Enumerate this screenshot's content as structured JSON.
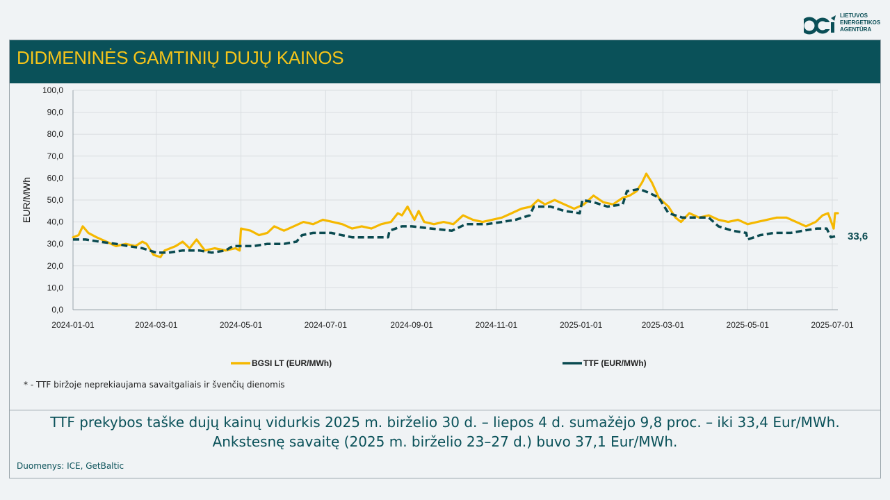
{
  "logo": {
    "line1": "LIETUVOS",
    "line2": "ENERGETIKOS",
    "line3": "AGENTŪRA"
  },
  "header": {
    "title": "DIDMENINĖS GAMTINIŲ DUJŲ KAINOS"
  },
  "note": "* - TTF biržoje neprekiaujama savaitgaliais ir švenčių dienomis",
  "summary": {
    "line1": "TTF prekybos taške dujų kainų vidurkis 2025 m. birželio 30 d. – liepos 4 d. sumažėjo 9,8 proc. – iki 33,4 Eur/MWh.",
    "line2": "Ankstesnę savaitę (2025 m. birželio 23–27 d.) buvo 37,1 Eur/MWh."
  },
  "source": "Duomenys: ICE, GetBaltic",
  "colors": {
    "bgsi": "#f5b800",
    "ttf": "#0a4a50",
    "header": "#0a5159",
    "title": "#f5c41a"
  },
  "chart_data": {
    "type": "line",
    "xlabel": "",
    "ylabel": "EUR/MWh",
    "ylim": [
      0,
      100
    ],
    "yticks": [
      "0,0",
      "10,0",
      "20,0",
      "30,0",
      "40,0",
      "50,0",
      "60,0",
      "70,0",
      "80,0",
      "90,0",
      "100,0"
    ],
    "xticks": [
      "2024-01-01",
      "2024-03-01",
      "2024-05-01",
      "2024-07-01",
      "2024-09-01",
      "2024-11-01",
      "2025-01-01",
      "2025-03-01",
      "2025-05-01",
      "2025-07-01"
    ],
    "xlim": [
      "2024-01-01",
      "2025-07-05"
    ],
    "end_label": "33,6",
    "legend_position": "bottom",
    "series": [
      {
        "name": "BGSI LT (EUR/MWh)",
        "style": "solid",
        "points": [
          [
            "2024-01-01",
            33
          ],
          [
            "2024-01-05",
            34
          ],
          [
            "2024-01-08",
            38
          ],
          [
            "2024-01-12",
            35
          ],
          [
            "2024-01-18",
            33
          ],
          [
            "2024-01-25",
            31
          ],
          [
            "2024-02-01",
            29
          ],
          [
            "2024-02-08",
            30
          ],
          [
            "2024-02-15",
            29
          ],
          [
            "2024-02-20",
            31
          ],
          [
            "2024-02-23",
            30
          ],
          [
            "2024-02-28",
            25
          ],
          [
            "2024-03-04",
            24
          ],
          [
            "2024-03-07",
            27
          ],
          [
            "2024-03-15",
            29
          ],
          [
            "2024-03-20",
            31
          ],
          [
            "2024-03-25",
            28
          ],
          [
            "2024-03-30",
            32
          ],
          [
            "2024-04-05",
            27
          ],
          [
            "2024-04-12",
            28
          ],
          [
            "2024-04-20",
            27
          ],
          [
            "2024-04-27",
            28
          ],
          [
            "2024-04-30",
            27
          ],
          [
            "2024-05-01",
            37
          ],
          [
            "2024-05-08",
            36
          ],
          [
            "2024-05-14",
            34
          ],
          [
            "2024-05-20",
            35
          ],
          [
            "2024-05-25",
            38
          ],
          [
            "2024-06-01",
            36
          ],
          [
            "2024-06-08",
            38
          ],
          [
            "2024-06-15",
            40
          ],
          [
            "2024-06-22",
            39
          ],
          [
            "2024-06-29",
            41
          ],
          [
            "2024-07-06",
            40
          ],
          [
            "2024-07-13",
            39
          ],
          [
            "2024-07-20",
            37
          ],
          [
            "2024-07-27",
            38
          ],
          [
            "2024-08-03",
            37
          ],
          [
            "2024-08-10",
            39
          ],
          [
            "2024-08-17",
            40
          ],
          [
            "2024-08-22",
            44
          ],
          [
            "2024-08-25",
            43
          ],
          [
            "2024-08-29",
            47
          ],
          [
            "2024-09-03",
            41
          ],
          [
            "2024-09-06",
            45
          ],
          [
            "2024-09-10",
            40
          ],
          [
            "2024-09-17",
            39
          ],
          [
            "2024-09-24",
            40
          ],
          [
            "2024-10-01",
            39
          ],
          [
            "2024-10-08",
            43
          ],
          [
            "2024-10-15",
            41
          ],
          [
            "2024-10-22",
            40
          ],
          [
            "2024-10-29",
            41
          ],
          [
            "2024-11-05",
            42
          ],
          [
            "2024-11-12",
            44
          ],
          [
            "2024-11-19",
            46
          ],
          [
            "2024-11-26",
            47
          ],
          [
            "2024-12-01",
            50
          ],
          [
            "2024-12-06",
            48
          ],
          [
            "2024-12-13",
            50
          ],
          [
            "2024-12-20",
            48
          ],
          [
            "2024-12-27",
            46
          ],
          [
            "2025-01-03",
            48
          ],
          [
            "2025-01-10",
            52
          ],
          [
            "2025-01-17",
            49
          ],
          [
            "2025-01-24",
            48
          ],
          [
            "2025-01-31",
            51
          ],
          [
            "2025-02-05",
            52
          ],
          [
            "2025-02-10",
            54
          ],
          [
            "2025-02-14",
            58
          ],
          [
            "2025-02-17",
            62
          ],
          [
            "2025-02-21",
            58
          ],
          [
            "2025-02-26",
            51
          ],
          [
            "2025-03-05",
            47
          ],
          [
            "2025-03-10",
            42
          ],
          [
            "2025-03-14",
            40
          ],
          [
            "2025-03-20",
            44
          ],
          [
            "2025-03-27",
            42
          ],
          [
            "2025-04-03",
            43
          ],
          [
            "2025-04-10",
            41
          ],
          [
            "2025-04-17",
            40
          ],
          [
            "2025-04-24",
            41
          ],
          [
            "2025-05-01",
            39
          ],
          [
            "2025-05-08",
            40
          ],
          [
            "2025-05-15",
            41
          ],
          [
            "2025-05-22",
            42
          ],
          [
            "2025-05-29",
            42
          ],
          [
            "2025-06-05",
            40
          ],
          [
            "2025-06-12",
            38
          ],
          [
            "2025-06-19",
            40
          ],
          [
            "2025-06-24",
            43
          ],
          [
            "2025-06-28",
            44
          ],
          [
            "2025-07-02",
            37
          ],
          [
            "2025-07-03",
            44
          ],
          [
            "2025-07-05",
            44
          ]
        ]
      },
      {
        "name": "TTF (EUR/MWh)",
        "style": "dashed",
        "points": [
          [
            "2024-01-01",
            32
          ],
          [
            "2024-01-10",
            32
          ],
          [
            "2024-01-20",
            31
          ],
          [
            "2024-02-01",
            30
          ],
          [
            "2024-02-10",
            29
          ],
          [
            "2024-02-20",
            28
          ],
          [
            "2024-03-01",
            26
          ],
          [
            "2024-03-10",
            26
          ],
          [
            "2024-03-20",
            27
          ],
          [
            "2024-04-01",
            27
          ],
          [
            "2024-04-10",
            26
          ],
          [
            "2024-04-20",
            27
          ],
          [
            "2024-04-25",
            29
          ],
          [
            "2024-05-10",
            29
          ],
          [
            "2024-05-20",
            30
          ],
          [
            "2024-06-01",
            30
          ],
          [
            "2024-06-10",
            31
          ],
          [
            "2024-06-14",
            34
          ],
          [
            "2024-06-22",
            35
          ],
          [
            "2024-07-05",
            35
          ],
          [
            "2024-07-20",
            33
          ],
          [
            "2024-08-01",
            33
          ],
          [
            "2024-08-15",
            33
          ],
          [
            "2024-08-16",
            36
          ],
          [
            "2024-08-25",
            38
          ],
          [
            "2024-09-01",
            38
          ],
          [
            "2024-09-15",
            37
          ],
          [
            "2024-09-30",
            36
          ],
          [
            "2024-10-10",
            39
          ],
          [
            "2024-10-25",
            39
          ],
          [
            "2024-11-05",
            40
          ],
          [
            "2024-11-15",
            41
          ],
          [
            "2024-11-25",
            43
          ],
          [
            "2024-11-28",
            47
          ],
          [
            "2024-12-10",
            47
          ],
          [
            "2024-12-20",
            45
          ],
          [
            "2024-12-31",
            44
          ],
          [
            "2025-01-02",
            50
          ],
          [
            "2025-01-10",
            49
          ],
          [
            "2025-01-20",
            47
          ],
          [
            "2025-01-31",
            48
          ],
          [
            "2025-02-03",
            54
          ],
          [
            "2025-02-12",
            55
          ],
          [
            "2025-02-20",
            53
          ],
          [
            "2025-02-26",
            51
          ],
          [
            "2025-03-05",
            44
          ],
          [
            "2025-03-15",
            42
          ],
          [
            "2025-03-25",
            42
          ],
          [
            "2025-04-03",
            42
          ],
          [
            "2025-04-10",
            38
          ],
          [
            "2025-04-20",
            36
          ],
          [
            "2025-04-30",
            35
          ],
          [
            "2025-05-01",
            32
          ],
          [
            "2025-05-10",
            34
          ],
          [
            "2025-05-20",
            35
          ],
          [
            "2025-06-01",
            35
          ],
          [
            "2025-06-10",
            36
          ],
          [
            "2025-06-20",
            37
          ],
          [
            "2025-06-27",
            37
          ],
          [
            "2025-06-30",
            33
          ],
          [
            "2025-07-04",
            33.6
          ]
        ]
      }
    ]
  }
}
